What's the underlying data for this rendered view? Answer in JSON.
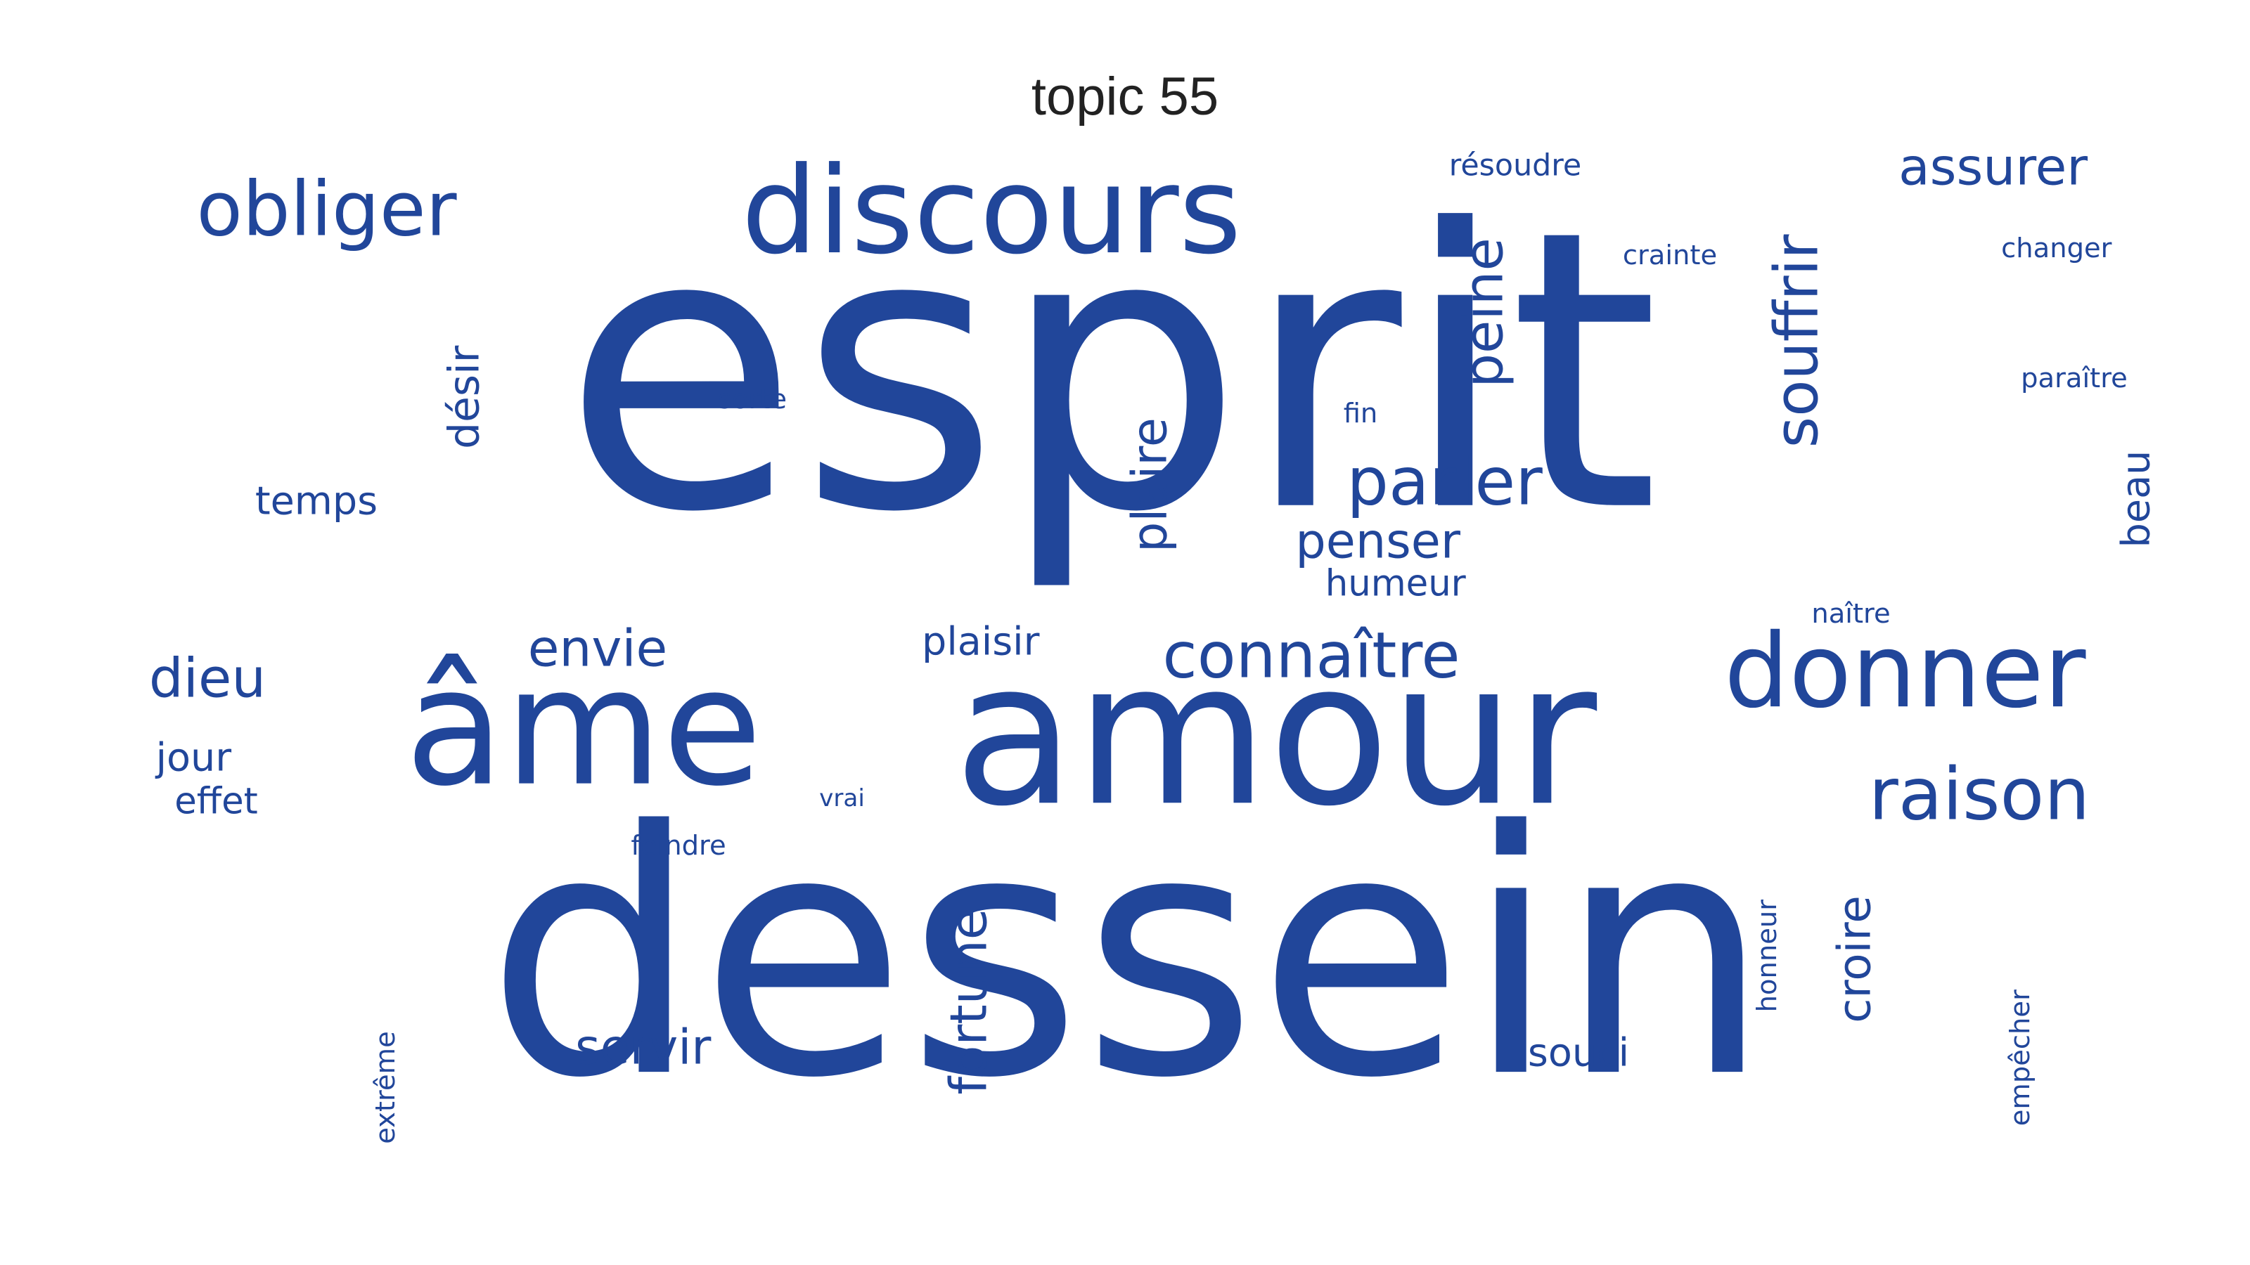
{
  "chart_data": {
    "type": "wordcloud",
    "title": "topic 55",
    "color": "#21469a",
    "words": [
      {
        "text": "esprit"
      },
      {
        "text": "dessein"
      },
      {
        "text": "amour"
      },
      {
        "text": "discours"
      },
      {
        "text": "âme"
      },
      {
        "text": "donner"
      },
      {
        "text": "obliger"
      },
      {
        "text": "raison"
      },
      {
        "text": "assurer"
      },
      {
        "text": "souffrir"
      },
      {
        "text": "parler"
      },
      {
        "text": "connaître"
      },
      {
        "text": "peine"
      },
      {
        "text": "plaire"
      },
      {
        "text": "désir"
      },
      {
        "text": "dieu"
      },
      {
        "text": "envie"
      },
      {
        "text": "penser"
      },
      {
        "text": "beau"
      },
      {
        "text": "fortune"
      },
      {
        "text": "croire"
      },
      {
        "text": "servir"
      },
      {
        "text": "temps"
      },
      {
        "text": "jour"
      },
      {
        "text": "humeur"
      },
      {
        "text": "plaisir"
      },
      {
        "text": "effet"
      },
      {
        "text": "souci"
      },
      {
        "text": "résoudre"
      },
      {
        "text": "crainte"
      },
      {
        "text": "changer"
      },
      {
        "text": "paraître"
      },
      {
        "text": "sorte"
      },
      {
        "text": "fin"
      },
      {
        "text": "naître"
      },
      {
        "text": "vrai"
      },
      {
        "text": "feindre"
      },
      {
        "text": "honneur"
      },
      {
        "text": "empêcher"
      },
      {
        "text": "extrême"
      }
    ]
  }
}
